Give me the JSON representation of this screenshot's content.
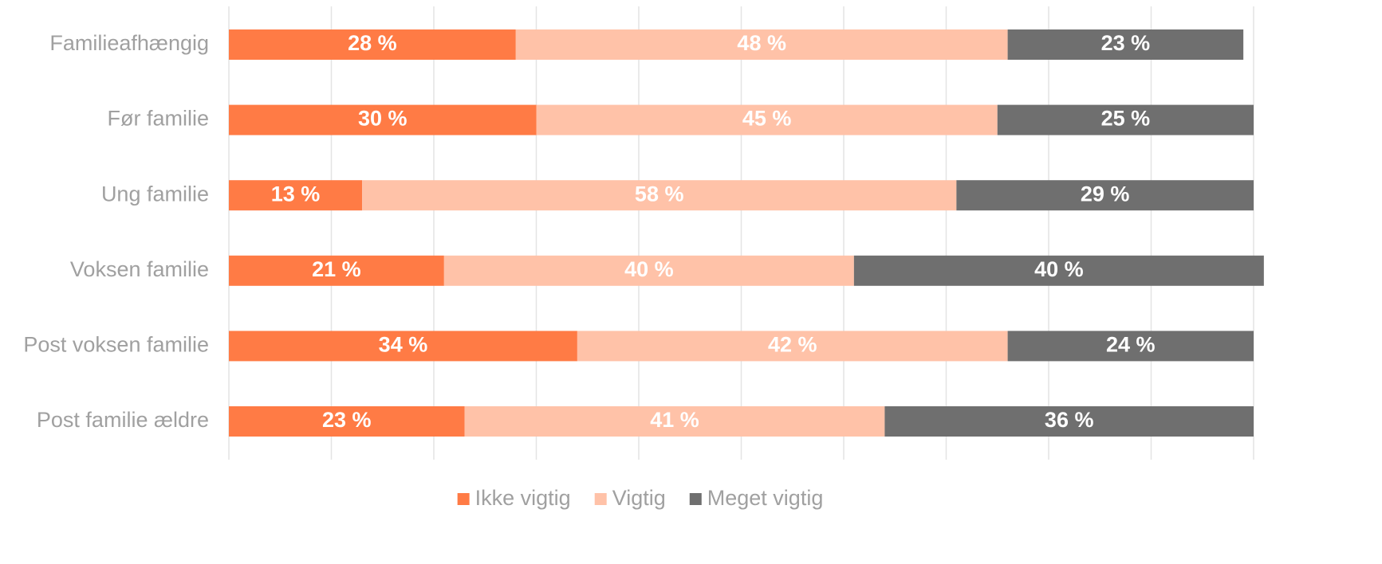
{
  "chart_data": {
    "type": "stacked-bar-horizontal",
    "categories": [
      "Familieafhængig",
      "Før familie",
      "Ung familie",
      "Voksen familie",
      "Post voksen familie",
      "Post familie ældre"
    ],
    "series": [
      {
        "name": "Ikke vigtig",
        "color": "#ff7b45",
        "values": [
          28,
          30,
          13,
          21,
          34,
          23
        ],
        "value_labels": [
          "28 %",
          "30 %",
          "13 %",
          "21 %",
          "34 %",
          "23 %"
        ]
      },
      {
        "name": "Vigtig",
        "color": "#ffc2a8",
        "values": [
          48,
          45,
          58,
          40,
          42,
          41
        ],
        "value_labels": [
          "48 %",
          "45 %",
          "58 %",
          "40 %",
          "42 %",
          "41 %"
        ]
      },
      {
        "name": "Meget vigtig",
        "color": "#6f6f6f",
        "values": [
          23,
          25,
          29,
          40,
          24,
          36
        ],
        "value_labels": [
          "23 %",
          "25 %",
          "29 %",
          "40 %",
          "24 %",
          "36 %"
        ]
      }
    ],
    "xlim": [
      0,
      100
    ],
    "xticks": [
      0,
      10,
      20,
      30,
      40,
      50,
      60,
      70,
      80,
      90,
      100
    ],
    "grid": true,
    "legend": "bottom"
  }
}
